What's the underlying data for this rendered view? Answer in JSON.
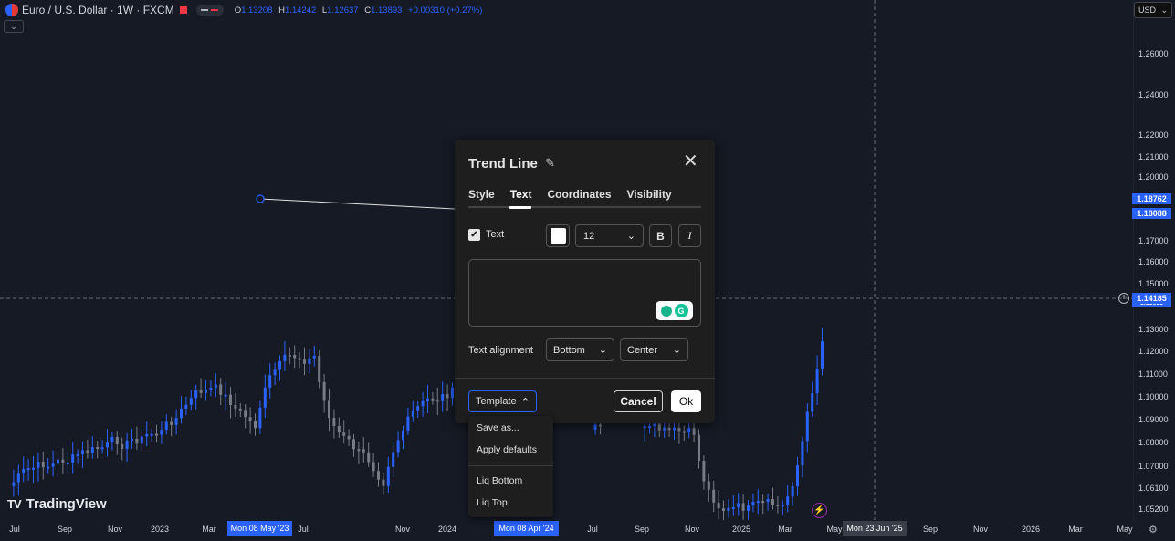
{
  "header": {
    "symbol": "Euro / U.S. Dollar · 1W · FXCM",
    "ohlc": [
      {
        "k": "O",
        "v": "1.13208"
      },
      {
        "k": "H",
        "v": "1.14242"
      },
      {
        "k": "L",
        "v": "1.12637"
      },
      {
        "k": "C",
        "v": "1.13893"
      }
    ],
    "change": "+0.00310 (+0.27%)",
    "collapse": "⌄"
  },
  "currency_button": "USD",
  "price_ticks": [
    "1.26000",
    "1.24000",
    "1.22000",
    "1.21000",
    "1.20000",
    "1.17000",
    "1.16000",
    "1.15000",
    "1.13000",
    "1.12000",
    "1.11000",
    "1.10000",
    "1.09000",
    "1.08000",
    "1.07000",
    "1.06100",
    "1.05200"
  ],
  "price_tags": {
    "a": "1.18762",
    "b": "1.18088",
    "current": "1.14185",
    "current_under": "1.13893"
  },
  "time_ticks": [
    "Jul",
    "Sep",
    "Nov",
    "2023",
    "Mar",
    "Jul",
    "Nov",
    "2024",
    "Jul",
    "Sep",
    "Nov",
    "2025",
    "Mar",
    "May",
    "Sep",
    "Nov",
    "2026",
    "Mar",
    "May"
  ],
  "time_tags": {
    "start": "Mon 08 May '23",
    "end": "Mon 08 Apr '24",
    "cursor": "Mon 23 Jun '25"
  },
  "logo_text": "TradingView",
  "dialog": {
    "title": "Trend Line",
    "tabs": [
      "Style",
      "Text",
      "Coordinates",
      "Visibility"
    ],
    "active_tab": "Text",
    "text_checkbox_label": "Text",
    "text_checked": true,
    "text_color": "#ffffff",
    "font_size": "12",
    "bold_label": "B",
    "italic_label": "I",
    "text_value": "",
    "alignment_label": "Text alignment",
    "vertical_align": "Bottom",
    "horizontal_align": "Center",
    "template_label": "Template",
    "cancel_label": "Cancel",
    "ok_label": "Ok"
  },
  "template_menu": {
    "items_top": [
      "Save as...",
      "Apply defaults"
    ],
    "items_bottom": [
      "Liq Bottom",
      "Liq Top"
    ]
  },
  "colors": {
    "background": "#161a25",
    "up_candle": "#2962ff",
    "down_candle": "#787b86",
    "accent": "#2962ff"
  }
}
